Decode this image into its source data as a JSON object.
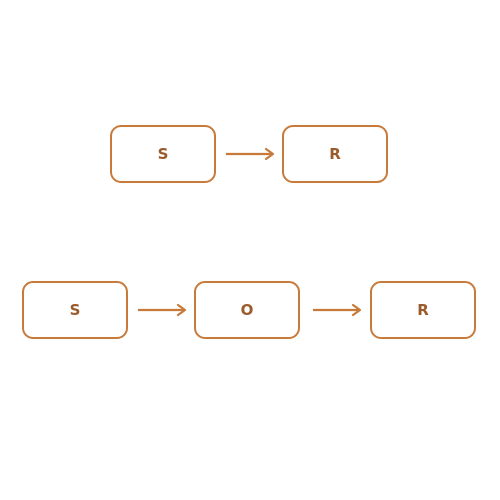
{
  "diagram": {
    "color_stroke": "#c87a3b",
    "color_text": "#9a5a2a",
    "row1": {
      "nodes": [
        {
          "id": "s1",
          "label": "S"
        },
        {
          "id": "r1",
          "label": "R"
        }
      ],
      "edges": [
        {
          "from": "S",
          "to": "R"
        }
      ]
    },
    "row2": {
      "nodes": [
        {
          "id": "s2",
          "label": "S"
        },
        {
          "id": "o2",
          "label": "O"
        },
        {
          "id": "r2",
          "label": "R"
        }
      ],
      "edges": [
        {
          "from": "S",
          "to": "O"
        },
        {
          "from": "O",
          "to": "R"
        }
      ]
    }
  }
}
